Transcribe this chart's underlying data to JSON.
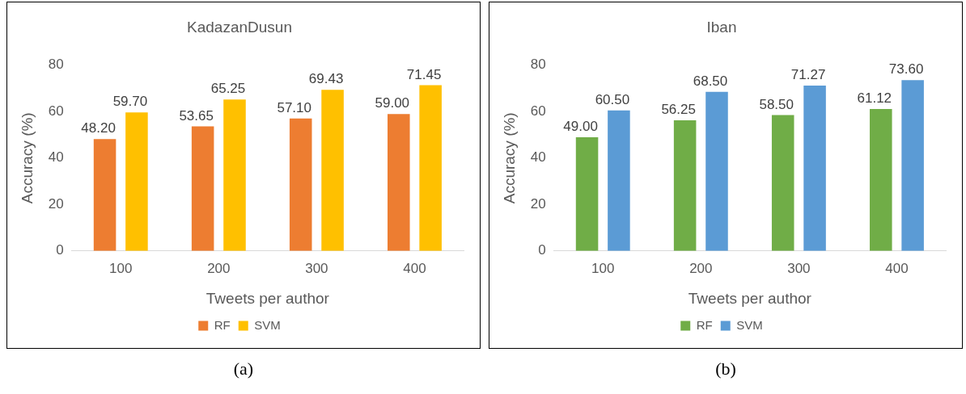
{
  "chart_data": [
    {
      "type": "bar",
      "title": "KadazanDusun",
      "xlabel": "Tweets per author",
      "ylabel": "Accuracy (%)",
      "categories": [
        "100",
        "200",
        "300",
        "400"
      ],
      "series": [
        {
          "name": "RF",
          "color": "#ed7d31",
          "values": [
            48.2,
            53.65,
            57.1,
            59.0
          ],
          "value_labels": [
            "48.20",
            "53.65",
            "57.10",
            "59.00"
          ]
        },
        {
          "name": "SVM",
          "color": "#ffc000",
          "values": [
            59.7,
            65.25,
            69.43,
            71.45
          ],
          "value_labels": [
            "59.70",
            "65.25",
            "69.43",
            "71.45"
          ]
        }
      ],
      "ylim": [
        0,
        80
      ],
      "yticks": [
        0,
        20,
        40,
        60,
        80
      ],
      "legend": "bottom",
      "annotations": [
        "(a)"
      ]
    },
    {
      "type": "bar",
      "title": "Iban",
      "xlabel": "Tweets per author",
      "ylabel": "Accuracy (%)",
      "categories": [
        "100",
        "200",
        "300",
        "400"
      ],
      "series": [
        {
          "name": "RF",
          "color": "#70ad47",
          "values": [
            49.0,
            56.25,
            58.5,
            61.12
          ],
          "value_labels": [
            "49.00",
            "56.25",
            "58.50",
            "61.12"
          ]
        },
        {
          "name": "SVM",
          "color": "#5b9bd5",
          "values": [
            60.5,
            68.5,
            71.27,
            73.6
          ],
          "value_labels": [
            "60.50",
            "68.50",
            "71.27",
            "73.60"
          ]
        }
      ],
      "ylim": [
        0,
        80
      ],
      "yticks": [
        0,
        20,
        40,
        60,
        80
      ],
      "legend": "bottom",
      "annotations": [
        "(b)"
      ]
    }
  ]
}
